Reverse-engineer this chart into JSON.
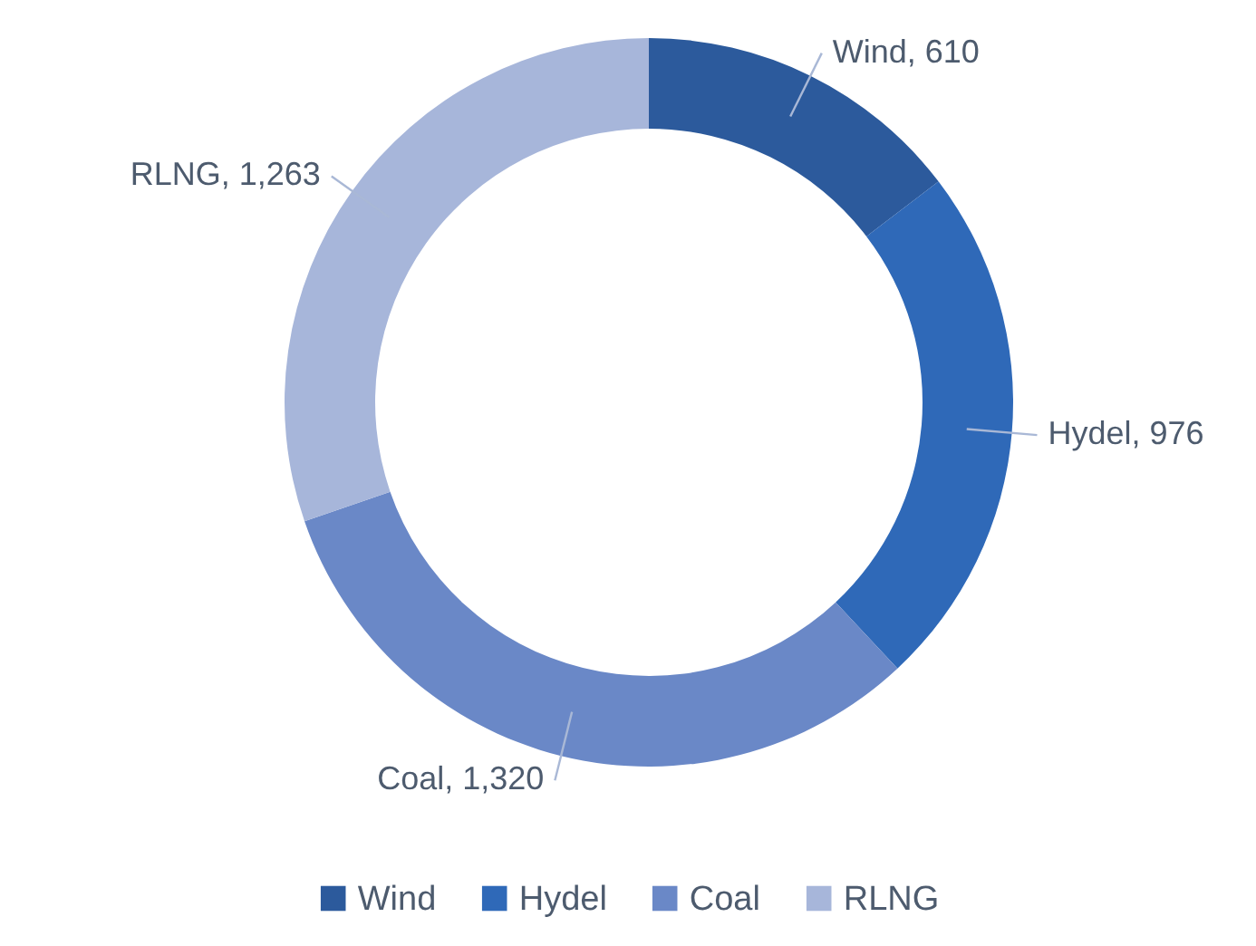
{
  "chart_data": {
    "type": "donut",
    "categories": [
      "Wind",
      "Hydel",
      "Coal",
      "RLNG"
    ],
    "values": [
      610,
      976,
      1320,
      1263
    ],
    "colors": [
      "#2c5a9c",
      "#2f69b8",
      "#6a88c7",
      "#a7b6da"
    ],
    "value_labels": [
      "Wind, 610",
      "Hydel, 976",
      "Coal, 1,320",
      "RLNG, 1,263"
    ],
    "legend": "bottom"
  }
}
